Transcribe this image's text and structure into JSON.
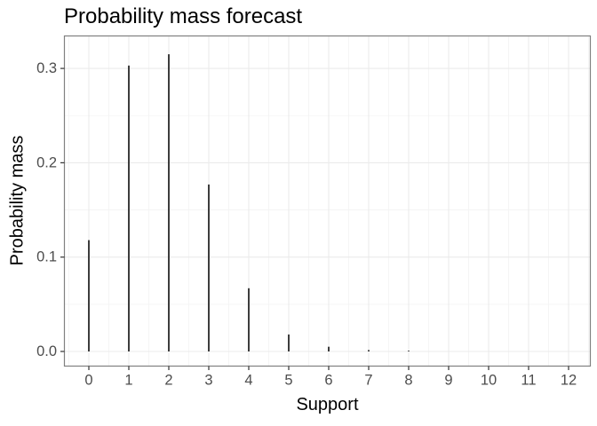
{
  "chart_data": {
    "type": "bar",
    "mark": "vertical-segment-pmf",
    "title": "Probability mass forecast",
    "xlabel": "Support",
    "ylabel": "Probability mass",
    "categories": [
      0,
      1,
      2,
      3,
      4,
      5,
      6,
      7,
      8,
      9,
      10,
      11,
      12
    ],
    "values": [
      0.118,
      0.303,
      0.315,
      0.177,
      0.067,
      0.018,
      0.005,
      0.0015,
      0.0008,
      0,
      0,
      0,
      0
    ],
    "x_tick_labels": [
      "0",
      "1",
      "2",
      "3",
      "4",
      "5",
      "6",
      "7",
      "8",
      "9",
      "10",
      "11",
      "12"
    ],
    "y_tick_values": [
      0,
      0.1,
      0.2,
      0.3
    ],
    "y_tick_labels": [
      "0.0",
      "0.1",
      "0.2",
      "0.3"
    ],
    "y_minor_gridlines": [
      0.05,
      0.15,
      0.25
    ],
    "xlim": [
      -0.61,
      12.54
    ],
    "ylim": [
      -0.0155,
      0.3344
    ],
    "grid": "major-and-minor",
    "legend": "none",
    "colors": {
      "bar": "#333333",
      "grid_major": "#EBEBEB",
      "grid_minor": "#F3F3F3",
      "panel_border": "#808080",
      "tick": "#333333",
      "tick_label": "#4D4D4D",
      "title_text": "#000000",
      "background": "#FFFFFF"
    }
  }
}
